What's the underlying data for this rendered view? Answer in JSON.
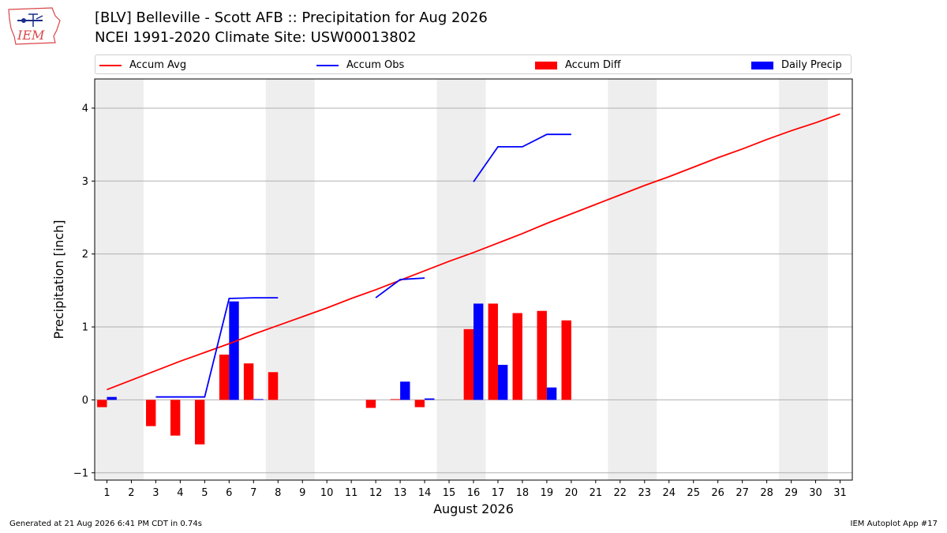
{
  "header": {
    "title_line1": "[BLV] Belleville - Scott AFB :: Precipitation for Aug 2026",
    "title_line2": "NCEI 1991-2020 Climate Site: USW00013802"
  },
  "logo": {
    "text": "IEM",
    "icon": "iowa-state-outline-logo"
  },
  "legend": {
    "accum_avg": "Accum Avg",
    "accum_obs": "Accum Obs",
    "accum_diff": "Accum Diff",
    "daily_precip": "Daily Precip"
  },
  "colors": {
    "accum_avg": "#ff0000",
    "accum_obs": "#0000ff",
    "accum_diff": "#ff0000",
    "daily_precip": "#0000ff",
    "weekend_shade": "#eeeeee",
    "grid": "#b0b0b0"
  },
  "footer": {
    "generated": "Generated at 21 Aug 2026 6:41 PM CDT in 0.74s",
    "app": "IEM Autoplot App #17"
  },
  "chart_data": {
    "type": "bar",
    "xlabel": "August 2026",
    "ylabel": "Precipitation [inch]",
    "xlim": [
      0.5,
      31.5
    ],
    "ylim": [
      -1.1,
      4.4
    ],
    "yticks": [
      -1,
      0,
      1,
      2,
      3,
      4
    ],
    "xticks": [
      1,
      2,
      3,
      4,
      5,
      6,
      7,
      8,
      9,
      10,
      11,
      12,
      13,
      14,
      15,
      16,
      17,
      18,
      19,
      20,
      21,
      22,
      23,
      24,
      25,
      26,
      27,
      28,
      29,
      30,
      31
    ],
    "grid": "horizontal",
    "legend_position": "top",
    "weekend_spans": [
      [
        0.5,
        2.5
      ],
      [
        7.5,
        9.5
      ],
      [
        14.5,
        16.5
      ],
      [
        21.5,
        23.5
      ],
      [
        28.5,
        30.5
      ]
    ],
    "accum_avg": {
      "name": "Accum Avg",
      "x": [
        1,
        2,
        3,
        4,
        5,
        6,
        7,
        8,
        9,
        10,
        11,
        12,
        13,
        14,
        15,
        16,
        17,
        18,
        19,
        20,
        21,
        22,
        23,
        24,
        25,
        26,
        27,
        28,
        29,
        30,
        31
      ],
      "values": [
        0.14,
        0.27,
        0.4,
        0.53,
        0.65,
        0.77,
        0.9,
        1.02,
        1.14,
        1.26,
        1.39,
        1.51,
        1.64,
        1.77,
        1.9,
        2.02,
        2.15,
        2.28,
        2.42,
        2.55,
        2.68,
        2.81,
        2.94,
        3.06,
        3.19,
        3.32,
        3.44,
        3.57,
        3.69,
        3.8,
        3.92
      ]
    },
    "accum_obs": {
      "name": "Accum Obs",
      "segments": [
        {
          "x": [
            3,
            4,
            5,
            6,
            7,
            8
          ],
          "values": [
            0.04,
            0.04,
            0.04,
            1.39,
            1.4,
            1.4
          ]
        },
        {
          "x": [
            12,
            13,
            14
          ],
          "values": [
            1.4,
            1.65,
            1.67
          ]
        },
        {
          "x": [
            16,
            17,
            18,
            19,
            20
          ],
          "values": [
            2.99,
            3.47,
            3.47,
            3.64,
            3.64
          ]
        }
      ]
    },
    "accum_diff": {
      "name": "Accum Diff",
      "x": [
        1,
        3,
        4,
        5,
        6,
        7,
        8,
        12,
        13,
        14,
        16,
        17,
        18,
        19,
        20
      ],
      "values": [
        -0.1,
        -0.36,
        -0.49,
        -0.61,
        0.62,
        0.5,
        0.38,
        -0.11,
        0.01,
        -0.1,
        0.97,
        1.32,
        1.19,
        1.22,
        1.09
      ]
    },
    "daily_precip": {
      "name": "Daily Precip",
      "x": [
        1,
        6,
        7,
        13,
        14,
        16,
        17,
        19
      ],
      "values": [
        0.04,
        1.35,
        0.01,
        0.25,
        0.02,
        1.32,
        0.48,
        0.17
      ]
    }
  }
}
